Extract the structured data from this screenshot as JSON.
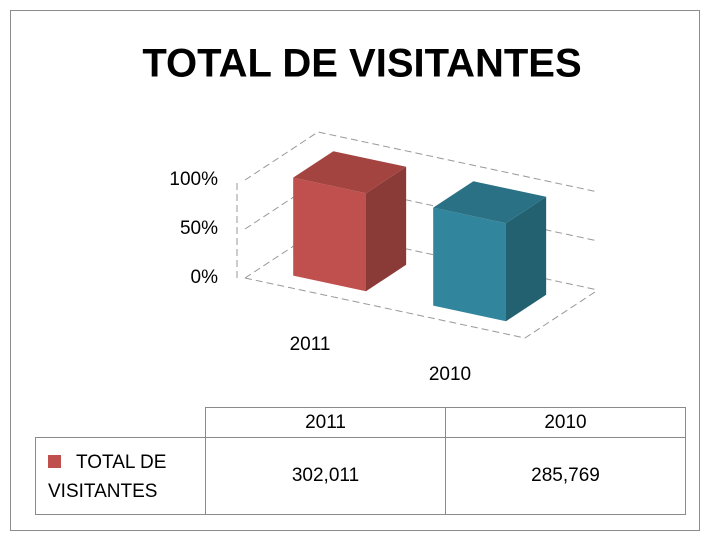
{
  "chart_data": {
    "type": "bar3d",
    "title": "TOTAL DE VISITANTES",
    "categories": [
      "2011",
      "2010"
    ],
    "series": [
      {
        "name": "TOTAL DE VISITANTES",
        "colors": [
          "#c0504d",
          "#31859c"
        ],
        "values": [
          100,
          100
        ],
        "table_values": [
          302011,
          285769
        ],
        "table_labels": [
          "302,011",
          "285,769"
        ]
      }
    ],
    "ylim": [
      0,
      100
    ],
    "yticks": [
      {
        "value": 0,
        "label": "0%"
      },
      {
        "value": 50,
        "label": "50%"
      },
      {
        "value": 100,
        "label": "100%"
      }
    ],
    "grid": true,
    "data_table": true
  }
}
